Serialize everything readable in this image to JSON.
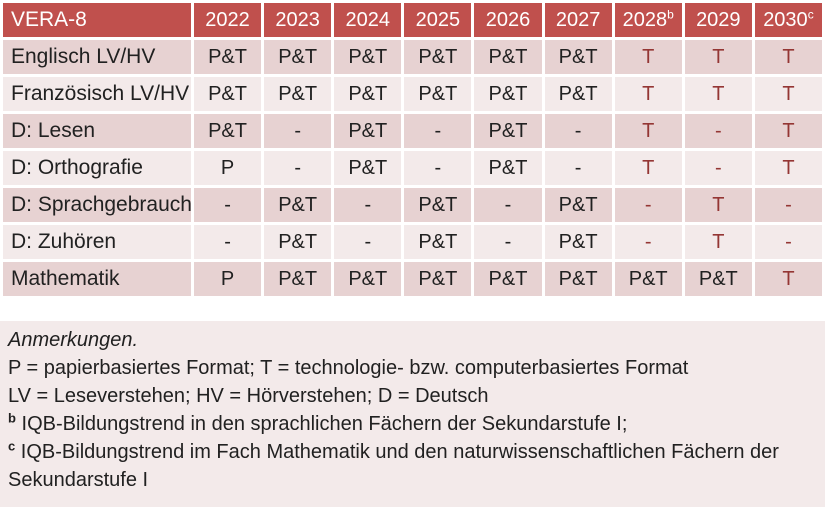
{
  "colors": {
    "header_bg": "#c0504d",
    "header_text": "#ffffff",
    "row_dark": "#e7d2d2",
    "row_light": "#f3eaea",
    "notes_bg": "#f3eaea",
    "red_text": "#943634",
    "body_text": "#212121"
  },
  "table": {
    "header": {
      "title": "VERA-8",
      "years": [
        {
          "label": "2022",
          "sup": ""
        },
        {
          "label": "2023",
          "sup": ""
        },
        {
          "label": "2024",
          "sup": ""
        },
        {
          "label": "2025",
          "sup": ""
        },
        {
          "label": "2026",
          "sup": ""
        },
        {
          "label": "2027",
          "sup": ""
        },
        {
          "label": "2028",
          "sup": "b"
        },
        {
          "label": "2029",
          "sup": ""
        },
        {
          "label": "2030",
          "sup": "c"
        }
      ]
    },
    "rows": [
      {
        "label": "Englisch LV/HV",
        "cells": [
          {
            "text": "P&T",
            "red": false
          },
          {
            "text": "P&T",
            "red": false
          },
          {
            "text": "P&T",
            "red": false
          },
          {
            "text": "P&T",
            "red": false
          },
          {
            "text": "P&T",
            "red": false
          },
          {
            "text": "P&T",
            "red": false
          },
          {
            "text": "T",
            "red": true
          },
          {
            "text": "T",
            "red": true
          },
          {
            "text": "T",
            "red": true
          }
        ]
      },
      {
        "label": "Französisch LV/HV",
        "cells": [
          {
            "text": "P&T",
            "red": false
          },
          {
            "text": "P&T",
            "red": false
          },
          {
            "text": "P&T",
            "red": false
          },
          {
            "text": "P&T",
            "red": false
          },
          {
            "text": "P&T",
            "red": false
          },
          {
            "text": "P&T",
            "red": false
          },
          {
            "text": "T",
            "red": true
          },
          {
            "text": "T",
            "red": true
          },
          {
            "text": "T",
            "red": true
          }
        ]
      },
      {
        "label": "D: Lesen",
        "cells": [
          {
            "text": "P&T",
            "red": false
          },
          {
            "text": "-",
            "red": false
          },
          {
            "text": "P&T",
            "red": false
          },
          {
            "text": "-",
            "red": false
          },
          {
            "text": "P&T",
            "red": false
          },
          {
            "text": "-",
            "red": false
          },
          {
            "text": "T",
            "red": true
          },
          {
            "text": "-",
            "red": true
          },
          {
            "text": "T",
            "red": true
          }
        ]
      },
      {
        "label": "D: Orthografie",
        "cells": [
          {
            "text": "P",
            "red": false
          },
          {
            "text": "-",
            "red": false
          },
          {
            "text": "P&T",
            "red": false
          },
          {
            "text": "-",
            "red": false
          },
          {
            "text": "P&T",
            "red": false
          },
          {
            "text": "-",
            "red": false
          },
          {
            "text": "T",
            "red": true
          },
          {
            "text": "-",
            "red": true
          },
          {
            "text": "T",
            "red": true
          }
        ]
      },
      {
        "label": "D: Sprachgebrauch",
        "cells": [
          {
            "text": "-",
            "red": false
          },
          {
            "text": "P&T",
            "red": false
          },
          {
            "text": "-",
            "red": false
          },
          {
            "text": "P&T",
            "red": false
          },
          {
            "text": "-",
            "red": false
          },
          {
            "text": "P&T",
            "red": false
          },
          {
            "text": "-",
            "red": true
          },
          {
            "text": "T",
            "red": true
          },
          {
            "text": "-",
            "red": true
          }
        ]
      },
      {
        "label": "D: Zuhören",
        "cells": [
          {
            "text": "-",
            "red": false
          },
          {
            "text": "P&T",
            "red": false
          },
          {
            "text": "-",
            "red": false
          },
          {
            "text": "P&T",
            "red": false
          },
          {
            "text": "-",
            "red": false
          },
          {
            "text": "P&T",
            "red": false
          },
          {
            "text": "-",
            "red": true
          },
          {
            "text": "T",
            "red": true
          },
          {
            "text": "-",
            "red": true
          }
        ]
      },
      {
        "label": "Mathematik",
        "cells": [
          {
            "text": "P",
            "red": false
          },
          {
            "text": "P&T",
            "red": false
          },
          {
            "text": "P&T",
            "red": false
          },
          {
            "text": "P&T",
            "red": false
          },
          {
            "text": "P&T",
            "red": false
          },
          {
            "text": "P&T",
            "red": false
          },
          {
            "text": "P&T",
            "red": false
          },
          {
            "text": "P&T",
            "red": false
          },
          {
            "text": "T",
            "red": true
          }
        ]
      }
    ]
  },
  "notes": {
    "heading": "Anmerkungen.",
    "format_line": "P = papierbasiertes Format; T = technologie- bzw. computerbasiertes Format",
    "abbrev_line": "LV = Leseverstehen; HV = Hörverstehen; D = Deutsch",
    "footnote_b": {
      "sup": "b",
      "text": "IQB-Bildungstrend in den sprachlichen Fächern der Sekundarstufe I;"
    },
    "footnote_c": {
      "sup": "c",
      "text": "IQB-Bildungstrend im Fach Mathematik und den naturwissenschaftlichen Fächern der Sekundarstufe I"
    }
  }
}
